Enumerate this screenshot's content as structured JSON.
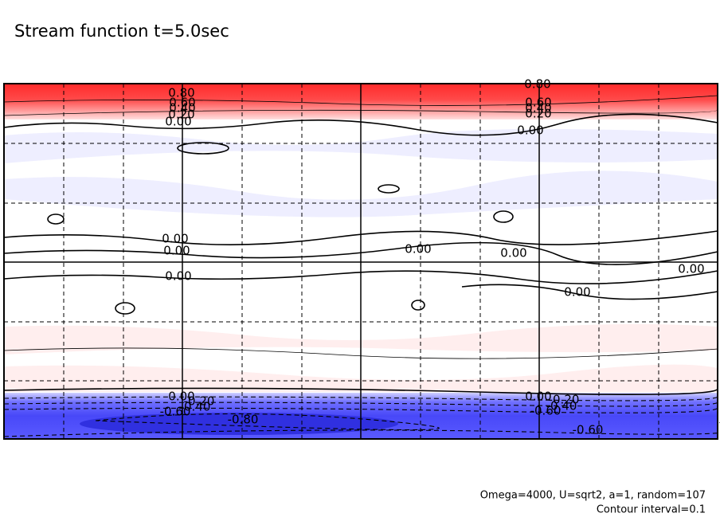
{
  "chart_data": {
    "type": "contour",
    "title": "Stream function t=5.0sec",
    "contour_labels": [
      "0.80",
      "0.60",
      "0.40",
      "0.20",
      "0.00",
      "0.80",
      "0.60",
      "0.40",
      "0.20",
      "0.00",
      "0.00",
      "0.00",
      "0.00",
      "0.00",
      "0.00",
      "0.00",
      "0.00",
      "0.00",
      "-0.20",
      "-0.40",
      "-0.60",
      "-0.80",
      "0.00",
      "-0.20",
      "-0.40",
      "-0.60",
      "-0.60"
    ],
    "notes": [
      "Omega=4000, U=sqrt2, a=1, random=107",
      "Contour interval=0.1"
    ]
  }
}
